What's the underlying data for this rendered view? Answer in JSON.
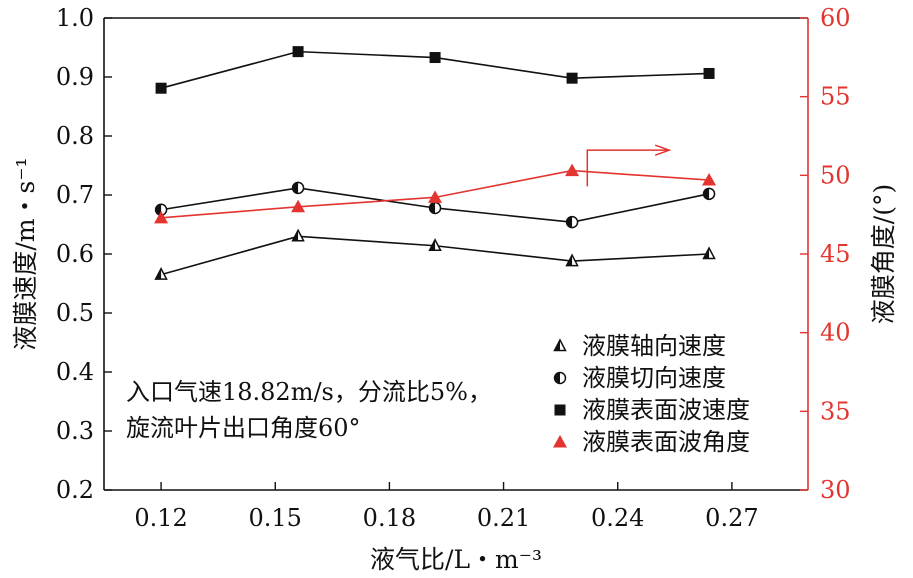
{
  "chart_data": {
    "type": "line",
    "x": [
      0.12,
      0.156,
      0.192,
      0.228,
      0.264
    ],
    "x_ticks": [
      "0.12",
      "0.15",
      "0.18",
      "0.21",
      "0.24",
      "0.27"
    ],
    "x_tick_values": [
      0.12,
      0.15,
      0.18,
      0.21,
      0.24,
      0.27
    ],
    "xlim": [
      0.105,
      0.29
    ],
    "xlabel": "液气比/L・m⁻³",
    "ylabel_left": "液膜速度/m・s⁻¹",
    "ylim_left": [
      0.2,
      1.0
    ],
    "y_ticks_left": [
      "0.2",
      "0.3",
      "0.4",
      "0.5",
      "0.6",
      "0.7",
      "0.8",
      "0.9",
      "1.0"
    ],
    "y_tick_values_left": [
      0.2,
      0.3,
      0.4,
      0.5,
      0.6,
      0.7,
      0.8,
      0.9,
      1.0
    ],
    "ylabel_right": "液膜角度/(°)",
    "ylim_right": [
      30,
      60
    ],
    "y_ticks_right": [
      "30",
      "35",
      "40",
      "45",
      "50",
      "55",
      "60"
    ],
    "y_tick_values_right": [
      30,
      35,
      40,
      45,
      50,
      55,
      60
    ],
    "right_axis_color": "#e3342f",
    "annotation_arrow": "right",
    "note_lines": [
      "入口气速18.82m/s，分流比5%，",
      "旋流叶片出口角度60°"
    ],
    "series": [
      {
        "name": "液膜轴向速度",
        "axis": "left",
        "marker": "triangle-open",
        "color": "#111111",
        "values": [
          0.565,
          0.63,
          0.614,
          0.588,
          0.6
        ]
      },
      {
        "name": "液膜切向速度",
        "axis": "left",
        "marker": "circle-half",
        "color": "#111111",
        "values": [
          0.675,
          0.712,
          0.678,
          0.654,
          0.702
        ]
      },
      {
        "name": "液膜表面波速度",
        "axis": "left",
        "marker": "square",
        "color": "#111111",
        "values": [
          0.881,
          0.943,
          0.933,
          0.898,
          0.906
        ]
      },
      {
        "name": "液膜表面波角度",
        "axis": "right",
        "marker": "triangle-filled",
        "color": "#e3342f",
        "values": [
          47.3,
          48.0,
          48.6,
          50.3,
          49.7
        ]
      }
    ],
    "legend_position": "bottom-right",
    "grid": false
  }
}
